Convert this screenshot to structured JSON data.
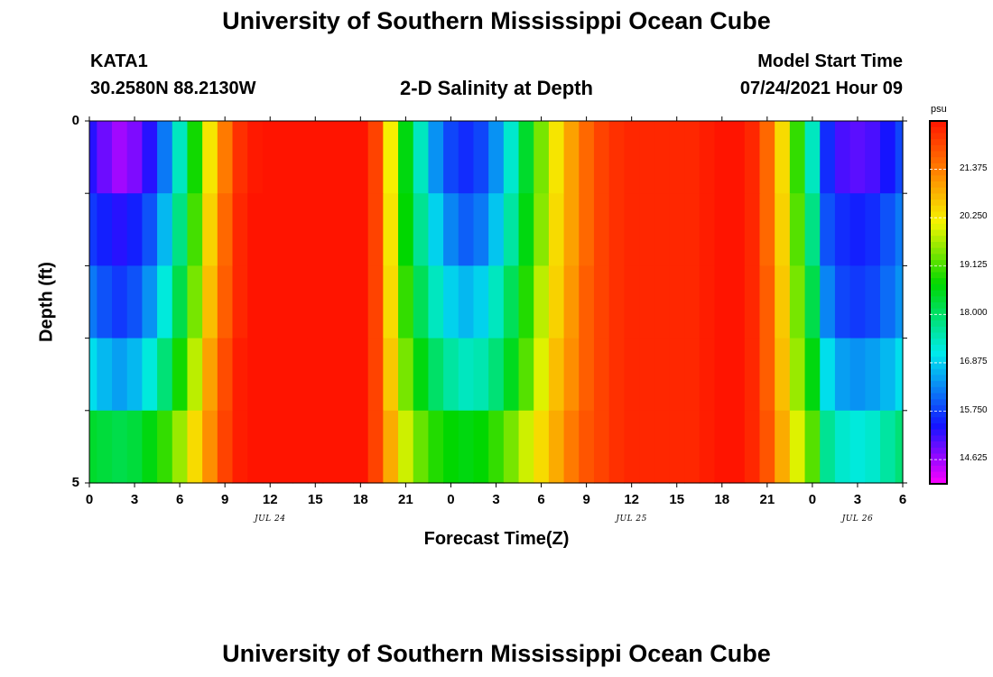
{
  "header": {
    "title": "University of Southern Mississippi Ocean Cube",
    "station": "KATA1",
    "location": "30.2580N  88.2130W",
    "subtitle": "2-D Salinity at Depth",
    "model_start_label": "Model Start Time",
    "model_start_value": "07/24/2021 Hour 09"
  },
  "footer": {
    "title": "University of Southern Mississippi Ocean Cube"
  },
  "chart_data": {
    "type": "heatmap",
    "title": "2-D Salinity at Depth",
    "xlabel": "Forecast Time(Z)",
    "ylabel": "Depth (ft)",
    "x_tick_labels": [
      "0",
      "3",
      "6",
      "9",
      "12",
      "15",
      "18",
      "21",
      "0",
      "3",
      "6",
      "9",
      "12",
      "15",
      "18",
      "21",
      "0",
      "3",
      "6"
    ],
    "x_range_hours": [
      0,
      54
    ],
    "date_labels": [
      {
        "text": "JUL 24",
        "hour": 12
      },
      {
        "text": "JUL 25",
        "hour": 36
      },
      {
        "text": "JUL 26",
        "hour": 51
      }
    ],
    "y_tick_labels": [
      "0",
      "5"
    ],
    "y_range": [
      0,
      5
    ],
    "colorbar": {
      "unit": "psu",
      "tick_labels": [
        "14.625",
        "15.750",
        "16.875",
        "18.000",
        "19.125",
        "20.250",
        "21.375"
      ],
      "range": [
        14.06,
        22.5
      ]
    },
    "depth_levels_ft": [
      0.5,
      1.5,
      2.5,
      3.5,
      4.5
    ],
    "hours": [
      0,
      1,
      2,
      3,
      4,
      5,
      6,
      7,
      8,
      9,
      10,
      11,
      12,
      13,
      14,
      15,
      16,
      17,
      18,
      19,
      20,
      21,
      22,
      23,
      24,
      25,
      26,
      27,
      28,
      29,
      30,
      31,
      32,
      33,
      34,
      35,
      36,
      37,
      38,
      39,
      40,
      41,
      42,
      43,
      44,
      45,
      46,
      47,
      48,
      49,
      50,
      51,
      52,
      53,
      54
    ],
    "values": [
      [
        15.3,
        14.9,
        14.6,
        14.8,
        15.3,
        16.2,
        17.4,
        18.8,
        20.3,
        21.4,
        22.2,
        22.45,
        22.5,
        22.5,
        22.5,
        22.5,
        22.5,
        22.5,
        22.5,
        22.0,
        20.2,
        18.6,
        17.4,
        16.4,
        15.8,
        15.6,
        15.8,
        16.4,
        17.3,
        18.4,
        19.4,
        20.3,
        21.0,
        21.6,
        22.0,
        22.2,
        22.3,
        22.3,
        22.3,
        22.3,
        22.3,
        22.4,
        22.5,
        22.5,
        22.3,
        21.6,
        20.4,
        19.0,
        17.4,
        15.6,
        15.1,
        15.0,
        15.1,
        15.4,
        15.8
      ],
      [
        15.7,
        15.5,
        15.3,
        15.5,
        15.9,
        16.7,
        17.8,
        19.1,
        20.5,
        21.6,
        22.3,
        22.5,
        22.5,
        22.5,
        22.5,
        22.5,
        22.5,
        22.5,
        22.5,
        22.0,
        20.3,
        18.7,
        17.7,
        16.9,
        16.3,
        16.0,
        16.2,
        16.8,
        17.6,
        18.6,
        19.5,
        20.4,
        21.0,
        21.6,
        22.0,
        22.2,
        22.3,
        22.3,
        22.3,
        22.3,
        22.3,
        22.4,
        22.5,
        22.5,
        22.3,
        21.6,
        20.5,
        19.2,
        17.8,
        15.9,
        15.6,
        15.5,
        15.6,
        15.9,
        16.2
      ],
      [
        16.2,
        15.9,
        15.7,
        15.9,
        16.4,
        17.2,
        18.2,
        19.4,
        20.7,
        21.7,
        22.3,
        22.5,
        22.5,
        22.5,
        22.5,
        22.5,
        22.5,
        22.5,
        22.5,
        22.0,
        20.4,
        19.0,
        18.1,
        17.4,
        16.9,
        16.7,
        16.9,
        17.4,
        18.1,
        18.9,
        19.8,
        20.5,
        21.1,
        21.7,
        22.0,
        22.2,
        22.3,
        22.3,
        22.3,
        22.3,
        22.3,
        22.4,
        22.5,
        22.5,
        22.3,
        21.7,
        20.6,
        19.4,
        18.2,
        16.3,
        15.8,
        15.7,
        15.8,
        16.1,
        16.4
      ],
      [
        17.0,
        16.7,
        16.5,
        16.7,
        17.2,
        17.9,
        18.8,
        19.8,
        21.0,
        21.9,
        22.4,
        22.5,
        22.5,
        22.5,
        22.5,
        22.5,
        22.5,
        22.5,
        22.5,
        22.0,
        20.6,
        19.4,
        18.6,
        18.0,
        17.6,
        17.4,
        17.5,
        17.9,
        18.5,
        19.2,
        20.0,
        20.7,
        21.2,
        21.7,
        22.0,
        22.2,
        22.3,
        22.3,
        22.3,
        22.3,
        22.3,
        22.4,
        22.5,
        22.5,
        22.3,
        21.7,
        20.7,
        19.6,
        18.6,
        17.0,
        16.5,
        16.4,
        16.5,
        16.7,
        17.0
      ],
      [
        18.4,
        18.3,
        18.2,
        18.3,
        18.6,
        19.0,
        19.6,
        20.4,
        21.2,
        22.0,
        22.4,
        22.5,
        22.5,
        22.5,
        22.5,
        22.5,
        22.5,
        22.5,
        22.5,
        22.0,
        20.9,
        19.9,
        19.3,
        18.9,
        18.7,
        18.6,
        18.7,
        19.0,
        19.4,
        19.9,
        20.4,
        20.9,
        21.4,
        21.8,
        22.0,
        22.2,
        22.3,
        22.3,
        22.3,
        22.3,
        22.3,
        22.4,
        22.5,
        22.5,
        22.3,
        21.8,
        20.9,
        20.0,
        19.2,
        17.7,
        17.3,
        17.2,
        17.3,
        17.6,
        17.9
      ]
    ]
  }
}
